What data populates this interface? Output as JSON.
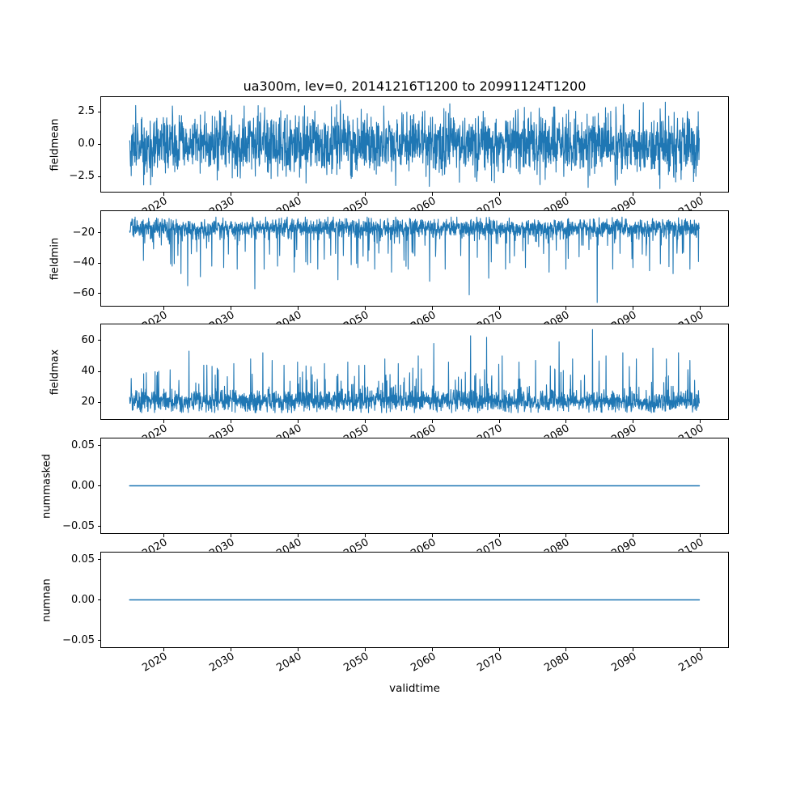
{
  "chart_data": {
    "type": "line",
    "title": "ua300m, lev=0, 20141216T1200 to 20991124T1200",
    "xlabel": "validtime",
    "line_color": "#1f77b4",
    "background": "#ffffff",
    "x_start": 2014.96,
    "x_end": 2099.9,
    "xlim": [
      2010.7,
      2104.2
    ],
    "xticks": [
      2020,
      2030,
      2040,
      2050,
      2060,
      2070,
      2080,
      2090,
      2100
    ],
    "xtick_labels": [
      "2020",
      "2030",
      "2040",
      "2050",
      "2060",
      "2070",
      "2080",
      "2090",
      "2100"
    ],
    "grid": false,
    "legend": "none",
    "n_points": 2200,
    "panels": [
      {
        "ylabel": "fieldmean",
        "ylim": [
          -3.68,
          3.63
        ],
        "yticks": [
          2.5,
          0.0,
          -2.5
        ],
        "ytick_labels": [
          "2.5",
          "0.0",
          "−2.5"
        ],
        "series": {
          "kind": "noise",
          "seed": 101,
          "mean": 0,
          "std": 1.15,
          "clip": [
            -3.45,
            3.4
          ],
          "spike_prob": 0,
          "spike_dir": 1,
          "spike_base": 0,
          "spike_mag": 0,
          "spikes": []
        }
      },
      {
        "ylabel": "fieldmin",
        "ylim": [
          -68.2,
          -5.7
        ],
        "yticks": [
          -20,
          -40,
          -60
        ],
        "ytick_labels": [
          "−20",
          "−40",
          "−60"
        ],
        "series": {
          "kind": "noise",
          "seed": 202,
          "mean": -16.5,
          "std": 3.0,
          "clip": [
            -26.5,
            -9.6
          ],
          "spike_prob": 0.1,
          "spike_dir": -1,
          "spike_base": 3,
          "spike_mag": 22,
          "spikes": [
            [
              2021.3,
              -42
            ],
            [
              2022.6,
              -47
            ],
            [
              2023.6,
              -55
            ],
            [
              2025.5,
              -49
            ],
            [
              2027.2,
              -42
            ],
            [
              2029,
              -43
            ],
            [
              2031,
              -44
            ],
            [
              2033.6,
              -57
            ],
            [
              2035,
              -44
            ],
            [
              2037,
              -42
            ],
            [
              2039.5,
              -46
            ],
            [
              2041.5,
              -41
            ],
            [
              2043,
              -44
            ],
            [
              2046,
              -51
            ],
            [
              2049,
              -43
            ],
            [
              2051.5,
              -44
            ],
            [
              2054,
              -46
            ],
            [
              2056.5,
              -44
            ],
            [
              2059.7,
              -52
            ],
            [
              2062,
              -44
            ],
            [
              2065.6,
              -61
            ],
            [
              2068.5,
              -50
            ],
            [
              2071,
              -44
            ],
            [
              2074,
              -43
            ],
            [
              2077.5,
              -46
            ],
            [
              2080,
              -44
            ],
            [
              2084.7,
              -66
            ],
            [
              2087,
              -44
            ],
            [
              2090,
              -43
            ],
            [
              2092.5,
              -45
            ],
            [
              2096,
              -47
            ],
            [
              2098.5,
              -44
            ]
          ]
        }
      },
      {
        "ylabel": "fieldmax",
        "ylim": [
          9.2,
          70.3
        ],
        "yticks": [
          60,
          40,
          20
        ],
        "ytick_labels": [
          "60",
          "40",
          "20"
        ],
        "series": {
          "kind": "noise",
          "seed": 303,
          "mean": 20.5,
          "std": 3.2,
          "clip": [
            13.3,
            28.5
          ],
          "spike_prob": 0.1,
          "spike_dir": 1,
          "spike_base": 3,
          "spike_mag": 20,
          "spikes": [
            [
              2021,
              41
            ],
            [
              2023.8,
              53
            ],
            [
              2026,
              44
            ],
            [
              2028,
              42
            ],
            [
              2030.5,
              45
            ],
            [
              2033,
              48
            ],
            [
              2034.8,
              52
            ],
            [
              2036.2,
              47
            ],
            [
              2038,
              44
            ],
            [
              2040,
              46
            ],
            [
              2042,
              43
            ],
            [
              2044,
              45
            ],
            [
              2047.5,
              46
            ],
            [
              2050,
              44
            ],
            [
              2053,
              48
            ],
            [
              2055,
              45
            ],
            [
              2058,
              50
            ],
            [
              2060.3,
              58
            ],
            [
              2062.5,
              46
            ],
            [
              2065.8,
              63
            ],
            [
              2068.2,
              62
            ],
            [
              2070.5,
              50
            ],
            [
              2073,
              46
            ],
            [
              2075.5,
              47
            ],
            [
              2079,
              59
            ],
            [
              2081,
              48
            ],
            [
              2084,
              67
            ],
            [
              2086,
              50
            ],
            [
              2088.5,
              52
            ],
            [
              2090.5,
              48
            ],
            [
              2093,
              55
            ],
            [
              2095,
              48
            ],
            [
              2096.8,
              52
            ],
            [
              2098.5,
              47
            ]
          ]
        }
      },
      {
        "ylabel": "nummasked",
        "ylim": [
          -0.0585,
          0.0585
        ],
        "yticks": [
          0.05,
          0.0,
          -0.05
        ],
        "ytick_labels": [
          "0.05",
          "0.00",
          "−0.05"
        ],
        "series": {
          "kind": "const",
          "value": 0
        }
      },
      {
        "ylabel": "numnan",
        "ylim": [
          -0.0585,
          0.0585
        ],
        "yticks": [
          0.05,
          0.0,
          -0.05
        ],
        "ytick_labels": [
          "0.05",
          "0.00",
          "−0.05"
        ],
        "series": {
          "kind": "const",
          "value": 0
        }
      }
    ]
  }
}
